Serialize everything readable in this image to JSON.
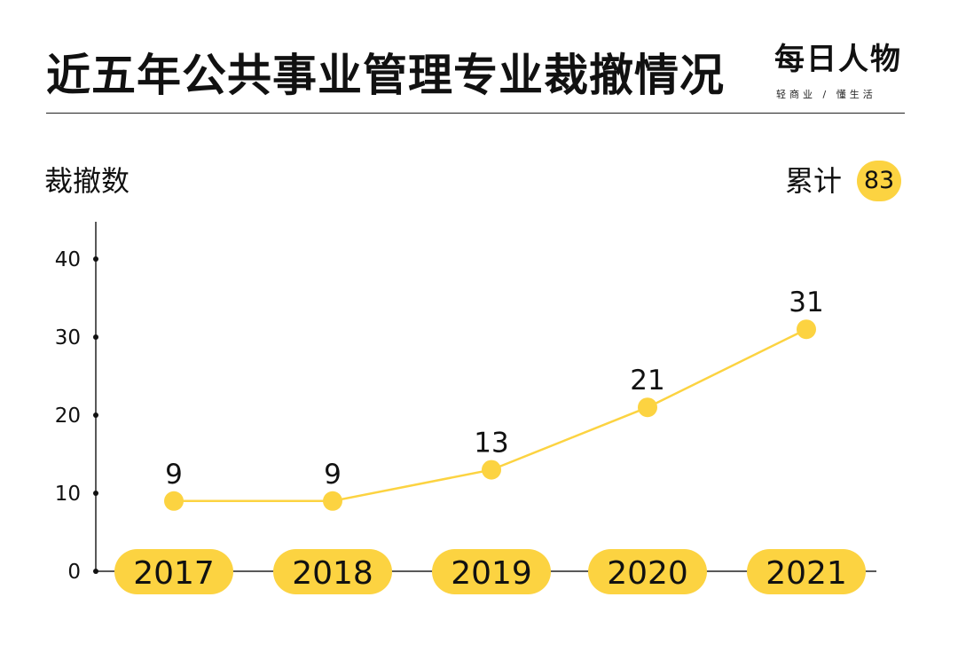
{
  "header": {
    "title": "近五年公共事业管理专业裁撤情况",
    "logo_main": "每日人物",
    "logo_sub": "轻商业 / 懂生活"
  },
  "labels": {
    "y_axis": "裁撤数",
    "total_label": "累计",
    "total_value": "83"
  },
  "colors": {
    "accent": "#FCD341",
    "text": "#111111",
    "axis": "#222222"
  },
  "chart_data": {
    "type": "line",
    "title": "近五年公共事业管理专业裁撤情况",
    "ylabel": "裁撤数",
    "xlabel": "",
    "categories": [
      "2017",
      "2018",
      "2019",
      "2020",
      "2021"
    ],
    "series": [
      {
        "values": [
          9,
          9,
          13,
          21,
          31
        ],
        "labels": [
          "9",
          "9",
          "13",
          "21",
          "31"
        ]
      }
    ],
    "ylim": [
      0,
      45
    ],
    "yticks": [
      0,
      10,
      20,
      30,
      40
    ],
    "ytick_labels": [
      "0",
      "10",
      "20",
      "30",
      "40"
    ],
    "grid": false,
    "legend": "none"
  }
}
